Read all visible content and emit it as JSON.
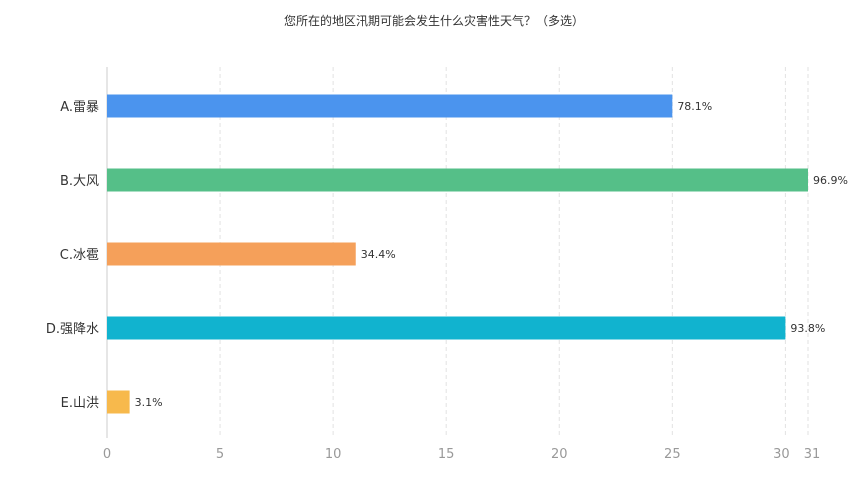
{
  "chart_data": {
    "type": "bar",
    "orientation": "horizontal",
    "title": "您所在的地区汛期可能会发生什么灾害性天气？（多选）",
    "categories": [
      "A.雷暴",
      "B.大风",
      "C.冰雹",
      "D.强降水",
      "E.山洪"
    ],
    "values": [
      25,
      31,
      11,
      30,
      1
    ],
    "value_labels": [
      "78.1%",
      "96.9%",
      "34.4%",
      "93.8%",
      "3.1%"
    ],
    "colors": [
      "#4b94ee",
      "#55bf88",
      "#f5a05a",
      "#11b3cf",
      "#f7b94c"
    ],
    "xticks": [
      0,
      5,
      10,
      15,
      20,
      25,
      30,
      31
    ],
    "xlim": [
      0,
      31
    ],
    "grid": true,
    "legend": "none"
  }
}
